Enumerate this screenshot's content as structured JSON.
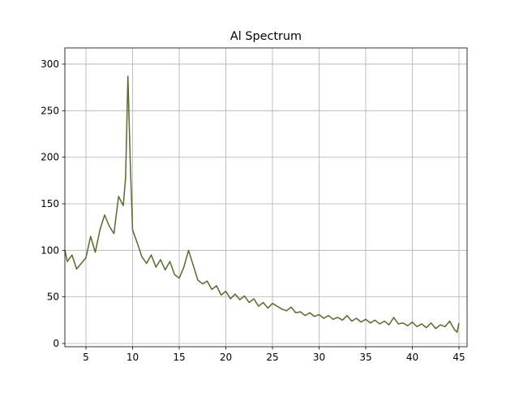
{
  "chart_data": {
    "type": "line",
    "title": "Al Spectrum",
    "x": [
      2.75,
      3,
      3.5,
      4,
      4.5,
      5,
      5.5,
      6,
      6.5,
      7,
      7.5,
      8,
      8.5,
      9,
      9.25,
      9.5,
      9.75,
      10,
      10.5,
      11,
      11.5,
      12,
      12.5,
      13,
      13.5,
      14,
      14.5,
      15,
      15.5,
      16,
      16.5,
      17,
      17.5,
      18,
      18.5,
      19,
      19.5,
      20,
      20.5,
      21,
      21.5,
      22,
      22.5,
      23,
      23.5,
      24,
      24.5,
      25,
      25.5,
      26,
      26.5,
      27,
      27.5,
      28,
      28.5,
      29,
      29.5,
      30,
      30.5,
      31,
      31.5,
      32,
      32.5,
      33,
      33.5,
      34,
      34.5,
      35,
      35.5,
      36,
      36.5,
      37,
      37.5,
      38,
      38.5,
      39,
      39.5,
      40,
      40.5,
      41,
      41.5,
      42,
      42.5,
      43,
      43.5,
      44,
      44.5,
      44.8,
      45
    ],
    "series": [
      {
        "name": "Al",
        "color": "#556b2f",
        "values": [
          100,
          88,
          95,
          80,
          86,
          92,
          115,
          98,
          122,
          138,
          126,
          118,
          158,
          148,
          178,
          287,
          195,
          122,
          108,
          93,
          86,
          95,
          82,
          90,
          79,
          88,
          74,
          70,
          82,
          100,
          84,
          68,
          64,
          67,
          58,
          62,
          52,
          56,
          48,
          53,
          47,
          51,
          44,
          48,
          40,
          44,
          38,
          43,
          40,
          37,
          35,
          39,
          33,
          34,
          30,
          33,
          29,
          31,
          27,
          30,
          26,
          28,
          25,
          30,
          24,
          27,
          23,
          26,
          22,
          25,
          21,
          24,
          20,
          28,
          21,
          22,
          19,
          23,
          18,
          21,
          17,
          22,
          16,
          20,
          18,
          24,
          15,
          12,
          22
        ]
      }
    ],
    "xlim": [
      2.74,
      45.87
    ],
    "ylim": [
      -3.5,
      317.4
    ],
    "xticks": [
      5,
      10,
      15,
      20,
      25,
      30,
      35,
      40,
      45
    ],
    "yticks": [
      0,
      50,
      100,
      150,
      200,
      250,
      300
    ],
    "grid": true
  }
}
